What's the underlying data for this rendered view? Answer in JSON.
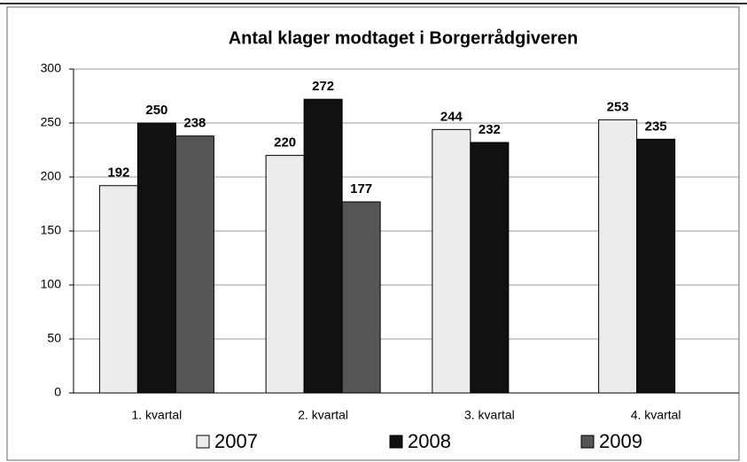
{
  "chart_data": {
    "type": "bar",
    "title": "Antal klager modtaget i Borgerrådgiveren",
    "categories": [
      "1. kvartal",
      "2. kvartal",
      "3. kvartal",
      "4. kvartal"
    ],
    "series": [
      {
        "name": "2007",
        "color": "#ececec",
        "values": [
          192,
          220,
          244,
          253
        ]
      },
      {
        "name": "2008",
        "color": "#111111",
        "values": [
          250,
          272,
          232,
          235
        ]
      },
      {
        "name": "2009",
        "color": "#555555",
        "values": [
          238,
          177,
          null,
          null
        ]
      }
    ],
    "ylim": [
      0,
      300
    ],
    "yticks": [
      0,
      50,
      100,
      150,
      200,
      250,
      300
    ],
    "grid": true,
    "legend": "bottom"
  }
}
